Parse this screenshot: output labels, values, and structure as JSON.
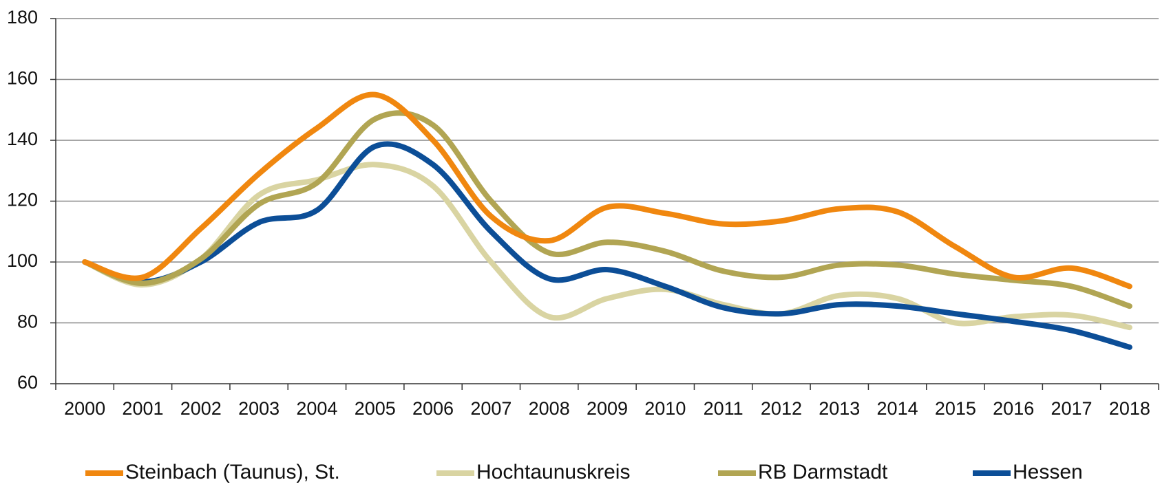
{
  "chart_data": {
    "type": "line",
    "categories": [
      "2000",
      "2001",
      "2002",
      "2003",
      "2004",
      "2005",
      "2006",
      "2007",
      "2008",
      "2009",
      "2010",
      "2011",
      "2012",
      "2013",
      "2014",
      "2015",
      "2016",
      "2017",
      "2018"
    ],
    "series": [
      {
        "name": "Steinbach (Taunus), St.",
        "color": "#f0870f",
        "values": [
          100,
          95,
          111,
          129,
          144,
          155,
          140,
          115,
          107,
          118,
          116,
          112.5,
          113.5,
          117.5,
          116.5,
          105,
          95,
          98,
          92
        ]
      },
      {
        "name": "Hochtaunuskreis",
        "color": "#d9d4a2",
        "values": [
          100,
          92.5,
          101,
          122,
          127,
          132,
          125,
          100,
          82,
          88,
          91,
          86,
          83,
          89,
          88,
          80,
          82,
          82.5,
          78.5
        ]
      },
      {
        "name": "RB Darmstadt",
        "color": "#b1a553",
        "values": [
          100,
          93,
          101,
          119,
          126,
          147,
          145,
          120,
          103,
          106.5,
          103.5,
          97,
          95,
          99,
          99,
          96,
          94,
          92,
          85.5
        ]
      },
      {
        "name": "Hessen",
        "color": "#0c4e97",
        "values": [
          100,
          93.5,
          100,
          113,
          117,
          138,
          132,
          110,
          94.5,
          97.5,
          92,
          85,
          83,
          86,
          85.5,
          83,
          80.5,
          77.5,
          72
        ]
      }
    ],
    "ylim": [
      60,
      180
    ],
    "yticks": [
      60,
      80,
      100,
      120,
      140,
      160,
      180
    ],
    "grid": true,
    "legend": "bottom"
  }
}
